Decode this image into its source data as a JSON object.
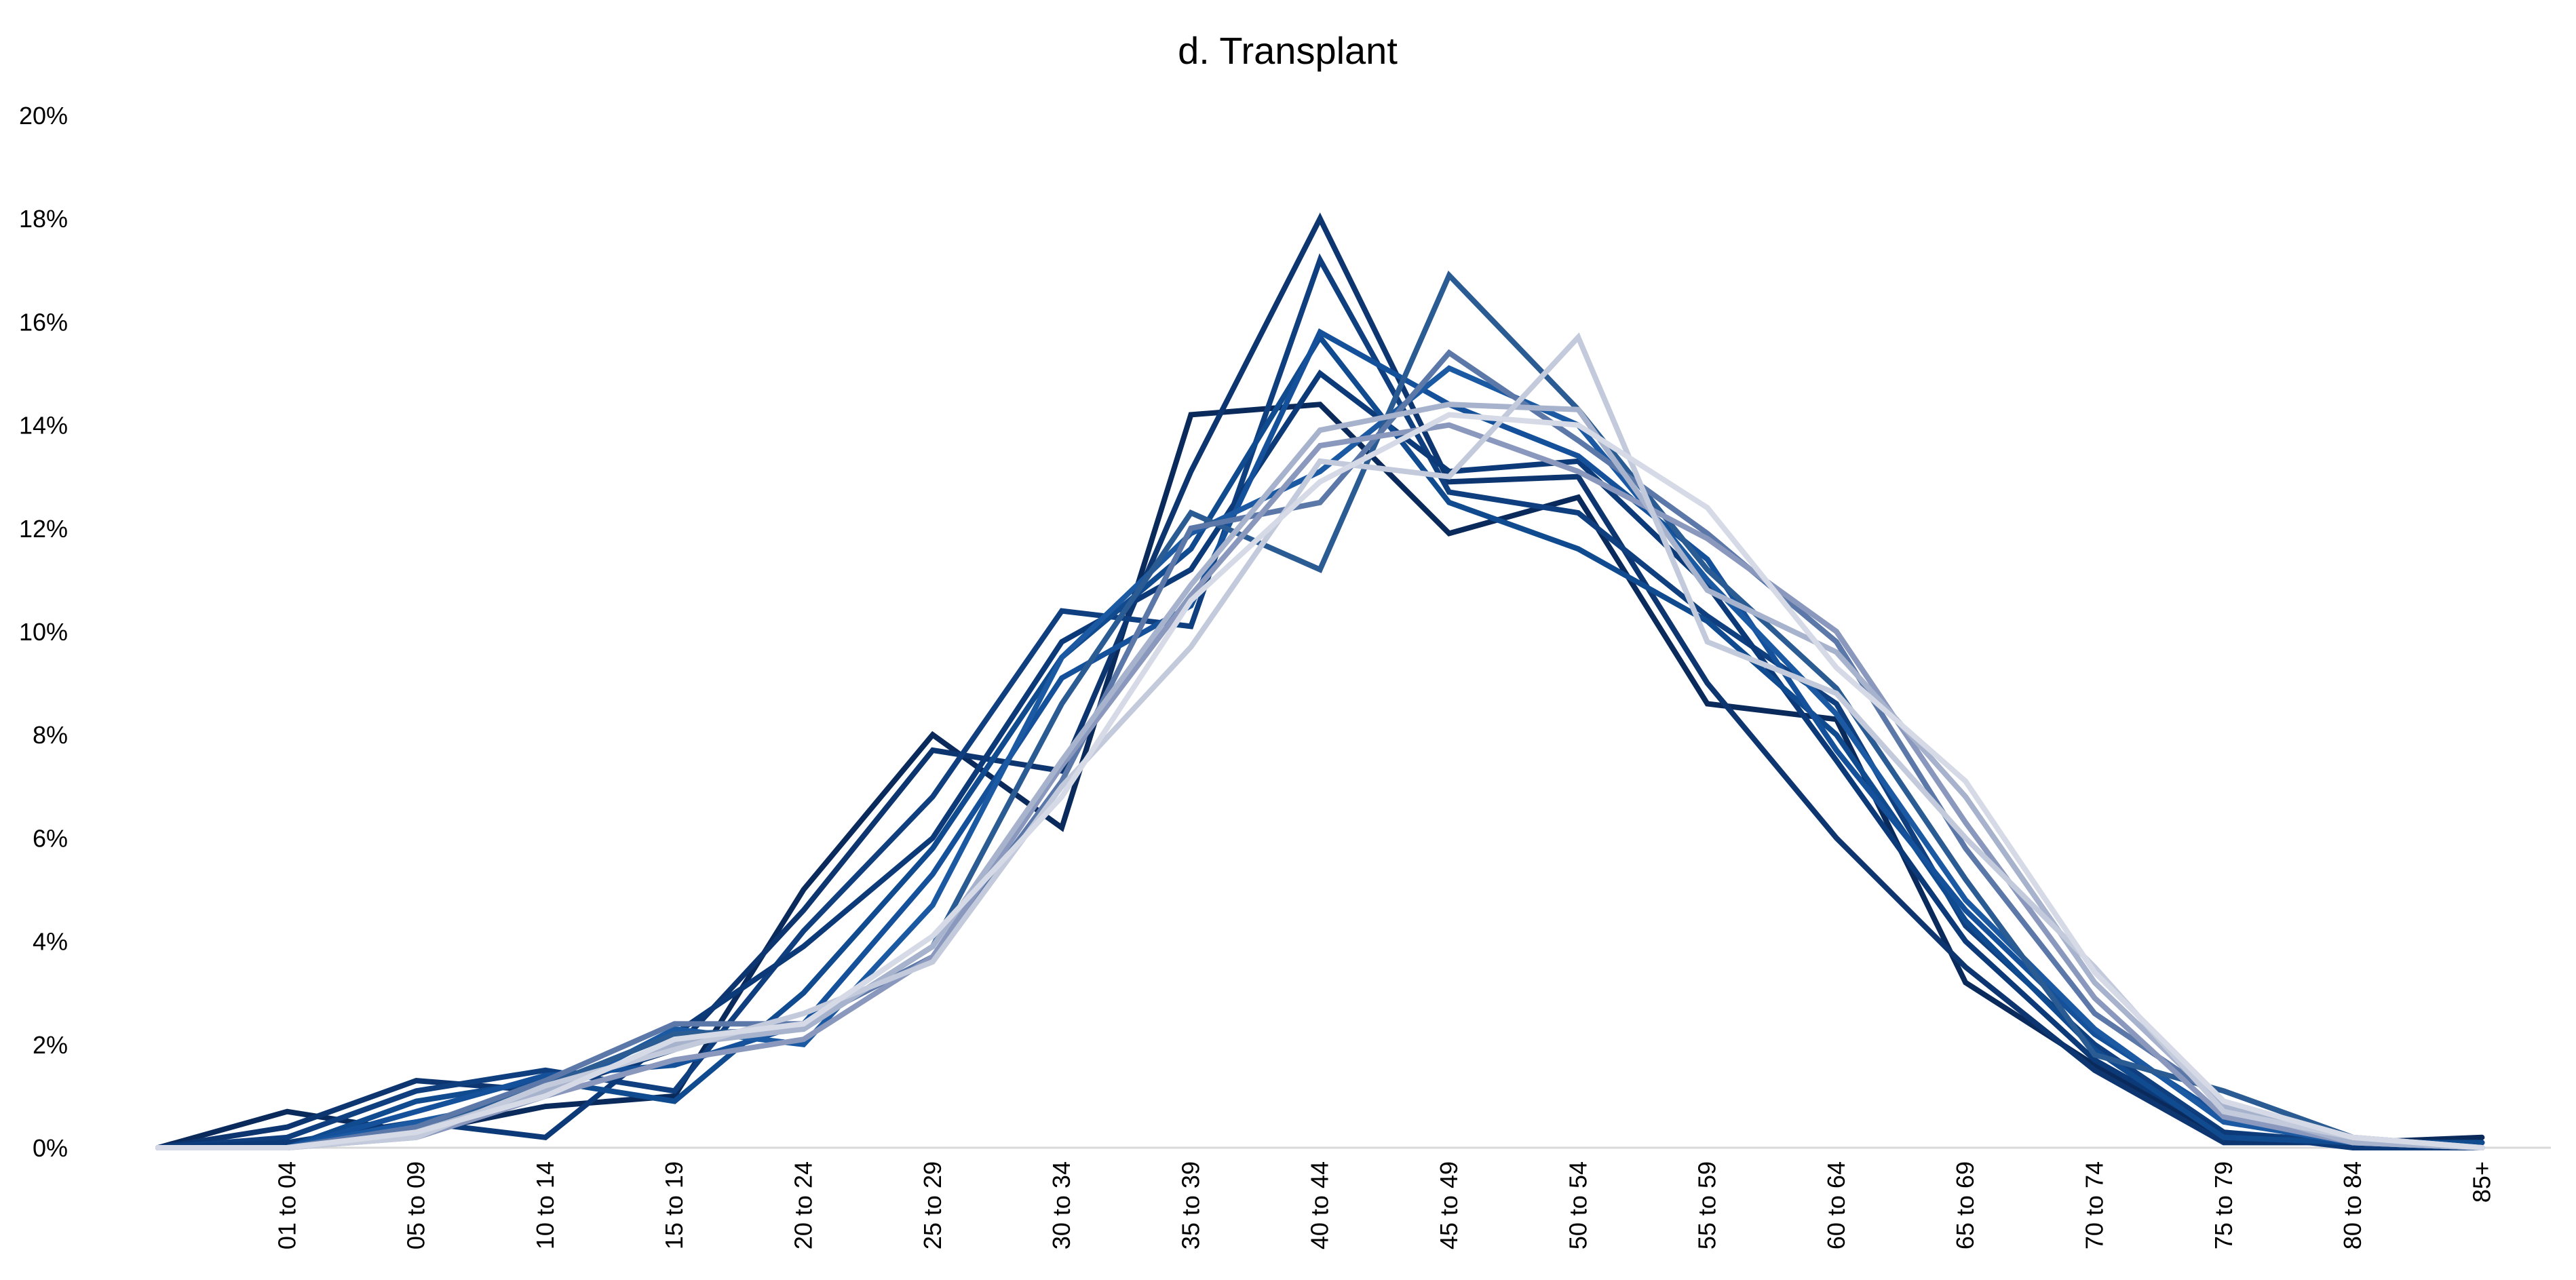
{
  "chart_data": {
    "type": "line",
    "title": "d. Transplant",
    "xlabel": "",
    "ylabel": "",
    "categories": [
      "",
      "01 to 04",
      "05 to 09",
      "10 to 14",
      "15 to 19",
      "20 to 24",
      "25 to 29",
      "30 to 34",
      "35 to 39",
      "40 to 44",
      "45 to 49",
      "50 to 54",
      "55 to 59",
      "60 to 64",
      "65 to 69",
      "70 to 74",
      "75 to 79",
      "80 to 84",
      "85+"
    ],
    "y_ticks": [
      "0%",
      "2%",
      "4%",
      "6%",
      "8%",
      "10%",
      "12%",
      "14%",
      "16%",
      "18%",
      "20%"
    ],
    "ylim": [
      0,
      20
    ],
    "grid": false,
    "legend": "none",
    "series": [
      {
        "color": "#0a2a5c",
        "values": [
          0,
          0.7,
          0.3,
          0.8,
          1.0,
          5.0,
          8.0,
          6.2,
          14.2,
          14.4,
          11.9,
          12.6,
          8.6,
          8.3,
          3.2,
          1.6,
          0.2,
          0.1,
          0.2
        ]
      },
      {
        "color": "#0d3670",
        "values": [
          0,
          0.4,
          1.3,
          1.1,
          1.9,
          4.6,
          7.7,
          7.3,
          13.1,
          18.0,
          12.9,
          13.0,
          9.0,
          6.0,
          3.5,
          1.5,
          0.1,
          0.1,
          0.1
        ]
      },
      {
        "color": "#0f3f7e",
        "values": [
          0,
          0.2,
          1.1,
          1.5,
          1.1,
          4.2,
          6.8,
          10.4,
          10.1,
          17.2,
          12.7,
          12.3,
          10.3,
          8.6,
          4.3,
          2.0,
          0.3,
          0.1,
          0.1
        ]
      },
      {
        "color": "#0c3a78",
        "values": [
          0,
          0.1,
          0.5,
          0.2,
          2.2,
          3.9,
          6.0,
          9.8,
          11.2,
          15.0,
          13.1,
          13.3,
          10.9,
          7.5,
          4.0,
          1.7,
          0.3,
          0.0,
          0.0
        ]
      },
      {
        "color": "#104a8f",
        "values": [
          0,
          0.0,
          0.9,
          1.3,
          0.9,
          3.0,
          5.8,
          9.5,
          11.6,
          15.7,
          12.5,
          11.6,
          10.2,
          8.0,
          4.4,
          1.9,
          0.2,
          0.1,
          0.1
        ]
      },
      {
        "color": "#14519a",
        "values": [
          0,
          0.0,
          0.7,
          1.4,
          1.6,
          2.4,
          5.3,
          9.1,
          10.5,
          15.8,
          14.4,
          13.4,
          11.4,
          7.7,
          4.6,
          2.2,
          0.6,
          0.1,
          0.0
        ]
      },
      {
        "color": "#1b5aa3",
        "values": [
          0,
          0.0,
          0.5,
          1.0,
          2.3,
          2.0,
          4.7,
          9.5,
          11.9,
          13.1,
          15.1,
          14.0,
          11.0,
          8.4,
          4.8,
          2.3,
          0.5,
          0.1,
          0.0
        ]
      },
      {
        "color": "#2a5b92",
        "values": [
          0,
          0.0,
          0.3,
          1.2,
          2.2,
          2.3,
          3.9,
          8.6,
          12.3,
          11.2,
          16.9,
          14.3,
          11.2,
          8.9,
          5.2,
          1.8,
          1.1,
          0.2,
          0.0
        ]
      },
      {
        "color": "#5c78a8",
        "values": [
          0,
          0.0,
          0.4,
          1.3,
          2.4,
          2.4,
          3.7,
          7.1,
          12.0,
          12.5,
          15.4,
          13.7,
          11.9,
          9.8,
          5.8,
          2.6,
          0.9,
          0.1,
          0.0
        ]
      },
      {
        "color": "#8a98bd",
        "values": [
          0,
          0.0,
          0.2,
          1.0,
          1.7,
          2.1,
          3.7,
          7.4,
          10.7,
          13.6,
          14.0,
          13.1,
          11.8,
          10.0,
          6.3,
          2.9,
          0.6,
          0.1,
          0.0
        ]
      },
      {
        "color": "#a7b2cd",
        "values": [
          0,
          0.0,
          0.3,
          1.1,
          2.0,
          2.3,
          3.9,
          7.5,
          10.9,
          13.9,
          14.4,
          14.3,
          10.8,
          9.6,
          6.8,
          3.2,
          0.8,
          0.1,
          0.0
        ]
      },
      {
        "color": "#c3cadb",
        "values": [
          0,
          0.0,
          0.2,
          1.2,
          1.9,
          2.6,
          3.6,
          7.0,
          9.7,
          13.3,
          13.0,
          15.7,
          9.8,
          8.8,
          6.0,
          3.5,
          0.7,
          0.2,
          0.0
        ]
      },
      {
        "color": "#d5dae6",
        "values": [
          0,
          0.0,
          0.3,
          1.0,
          2.1,
          2.4,
          4.1,
          6.8,
          10.6,
          12.9,
          14.2,
          14.0,
          12.4,
          9.3,
          7.1,
          3.4,
          0.9,
          0.2,
          0.0
        ]
      }
    ]
  }
}
